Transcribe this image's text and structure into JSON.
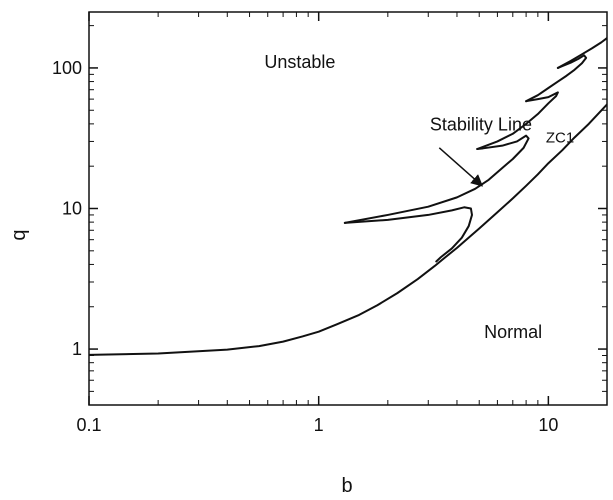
{
  "chart_data": {
    "type": "line",
    "xlabel": "b",
    "ylabel": "q",
    "xscale": "log",
    "yscale": "log",
    "xlim": [
      0.1,
      18
    ],
    "ylim": [
      0.4,
      250
    ],
    "grid": false,
    "legend": "none",
    "x_ticks": [
      {
        "value": 0.1,
        "label": "0.1"
      },
      {
        "value": 1,
        "label": "1"
      },
      {
        "value": 10,
        "label": "10"
      }
    ],
    "y_ticks": [
      {
        "value": 1,
        "label": "1"
      },
      {
        "value": 10,
        "label": "10"
      },
      {
        "value": 100,
        "label": "100"
      }
    ],
    "series": [
      {
        "x": [
          0.1,
          0.2,
          0.4,
          0.55,
          0.7,
          0.85,
          1.0,
          1.2,
          1.5,
          1.8,
          2.2,
          2.7,
          3.2,
          3.5,
          4.0,
          4.5,
          5.0,
          6.0,
          7.0,
          8.0,
          9.0,
          10.0,
          11.5,
          13.0,
          15.0,
          18.0
        ],
        "y": [
          0.91,
          0.93,
          0.99,
          1.05,
          1.13,
          1.23,
          1.33,
          1.5,
          1.75,
          2.05,
          2.5,
          3.15,
          3.9,
          4.4,
          5.25,
          6.2,
          7.2,
          9.4,
          11.8,
          14.5,
          17.5,
          21.0,
          26.0,
          32.0,
          40.0,
          55.0
        ]
      },
      {
        "x": [
          1.3,
          2.0,
          3.0,
          3.8,
          4.3,
          4.6,
          4.65,
          4.5,
          4.2,
          3.8,
          3.4,
          3.25
        ],
        "y": [
          7.9,
          8.3,
          9.0,
          9.7,
          10.2,
          10.0,
          9.0,
          7.5,
          6.2,
          5.2,
          4.5,
          4.2
        ]
      },
      {
        "x": [
          1.3,
          2.0,
          3.0,
          4.0,
          4.8,
          5.5,
          6.2,
          7.0,
          7.8,
          8.2,
          8.0,
          7.3,
          6.3,
          5.2,
          4.9
        ],
        "y": [
          7.9,
          9.0,
          10.3,
          12.0,
          13.8,
          16.0,
          19.0,
          22.5,
          27.0,
          31.5,
          33.0,
          30.0,
          28.0,
          26.8,
          26.5
        ]
      },
      {
        "x": [
          4.9,
          6.0,
          7.0,
          8.0,
          9.0,
          10.0,
          10.8,
          11.0,
          10.8,
          10.0,
          9.0,
          8.0
        ],
        "y": [
          26.5,
          30.0,
          34.0,
          40.0,
          47.0,
          56.0,
          63.0,
          67.0,
          66.0,
          62.0,
          60.0,
          58.0
        ]
      },
      {
        "x": [
          8.0,
          9.0,
          10.0,
          11.0,
          12.0,
          13.0,
          14.0,
          14.6,
          14.3,
          13.5,
          12.5,
          11.5,
          11.0
        ],
        "y": [
          58.0,
          64.0,
          72.0,
          80.0,
          88.0,
          97.0,
          108.0,
          118.0,
          123.0,
          116.0,
          109.0,
          103.0,
          100.0
        ]
      },
      {
        "x": [
          11.0,
          12.5,
          14.0,
          15.5,
          17.0,
          18.0
        ],
        "y": [
          100.0,
          112.0,
          125.0,
          138.0,
          152.0,
          163.0
        ]
      }
    ],
    "annotations": [
      {
        "text": "Unstable",
        "x": 0.58,
        "y": 100,
        "size": "large"
      },
      {
        "text": "Stability Line",
        "x": 3.05,
        "y": 36,
        "size": "large"
      },
      {
        "text": "ZC1",
        "x": 9.75,
        "y": 29.5,
        "size": "small"
      },
      {
        "text": "Normal",
        "x": 5.25,
        "y": 1.2,
        "size": "large"
      }
    ],
    "arrow": {
      "from": {
        "x": 3.35,
        "y": 27
      },
      "to": {
        "x": 5.15,
        "y": 14.5
      }
    }
  }
}
